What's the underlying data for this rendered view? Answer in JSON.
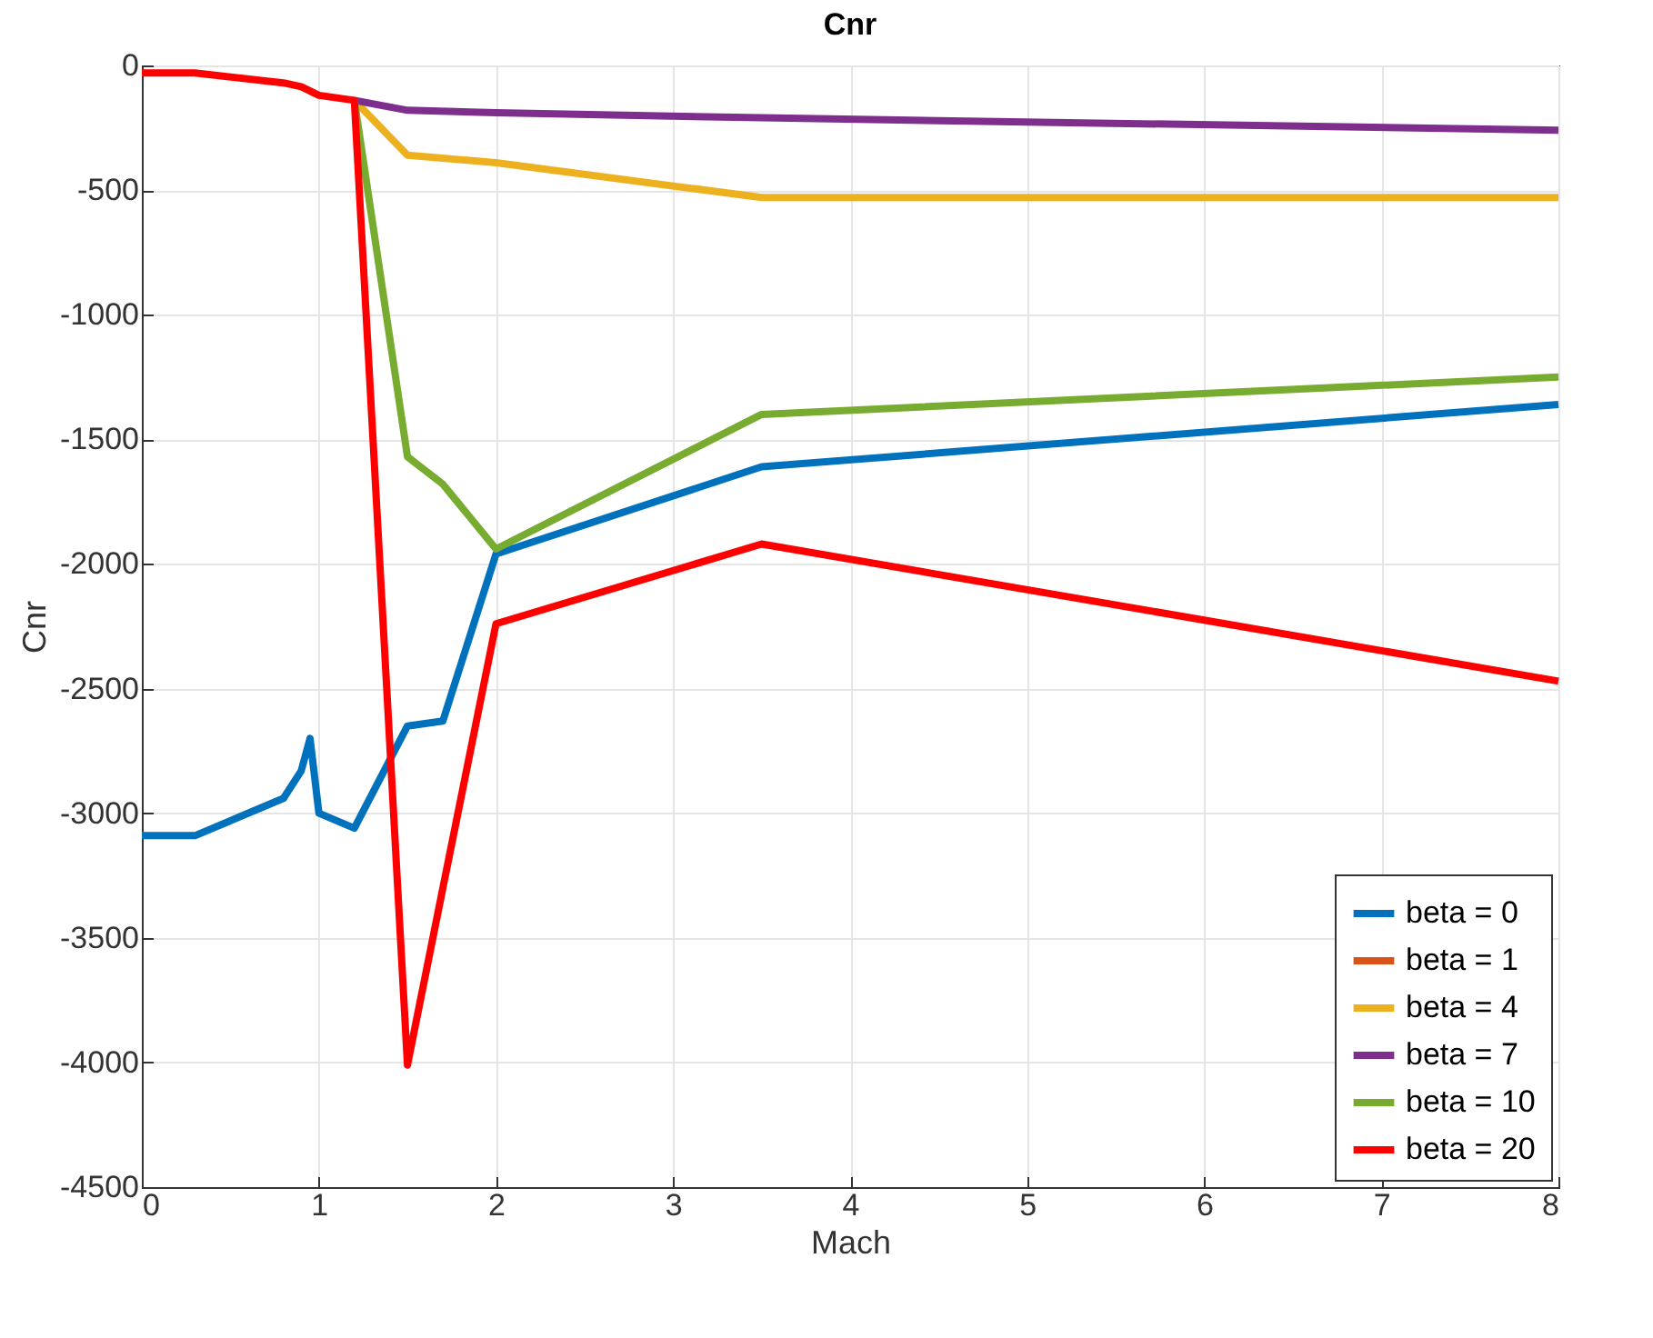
{
  "chart_data": {
    "type": "line",
    "title": "Cnr",
    "xlabel": "Mach",
    "ylabel": "Cnr",
    "xlim": [
      0,
      8
    ],
    "xticks": [
      0,
      1,
      2,
      3,
      4,
      5,
      6,
      7,
      8
    ],
    "ylim": [
      -4500,
      0
    ],
    "yticks": [
      -4500,
      -4000,
      -3500,
      -3000,
      -2500,
      -2000,
      -1500,
      -1000,
      -500,
      0
    ],
    "grid": true,
    "legend": "bottom right",
    "line_style": "solid",
    "marker": "none",
    "series": [
      {
        "name": "beta = 0",
        "color": "#0072bd",
        "x": [
          0,
          0.3,
          0.8,
          0.9,
          0.95,
          1.0,
          1.2,
          1.5,
          1.7,
          2,
          3.5,
          8
        ],
        "values": [
          -3090,
          -3090,
          -2940,
          -2830,
          -2700,
          -3000,
          -3060,
          -2650,
          -2630,
          -1960,
          -1610,
          -1360
        ]
      },
      {
        "name": "beta = 1",
        "color": "#d95319"
      },
      {
        "name": "beta = 4",
        "color": "#edb120",
        "x": [
          1.2,
          1.5,
          2,
          3.5,
          8
        ],
        "values": [
          -140,
          -360,
          -390,
          -530,
          -530
        ]
      },
      {
        "name": "beta = 7",
        "color": "#7e2f8e",
        "x": [
          1.2,
          1.5,
          2,
          3.5,
          8
        ],
        "values": [
          -140,
          -180,
          -190,
          -210,
          -260
        ]
      },
      {
        "name": "beta = 10",
        "color": "#77ac30",
        "x": [
          1.2,
          1.5,
          1.7,
          2,
          3.5,
          8
        ],
        "values": [
          -140,
          -1570,
          -1680,
          -1940,
          -1400,
          -1250
        ]
      },
      {
        "name": "beta = 20",
        "color": "#ff0000",
        "x": [
          0,
          0.3,
          0.8,
          0.9,
          1.0,
          1.2,
          1.5,
          1.7,
          2,
          3.5,
          8
        ],
        "values": [
          -30,
          -30,
          -70,
          -85,
          -120,
          -140,
          -4010,
          -3300,
          -2240,
          -1920,
          -2470
        ]
      }
    ]
  }
}
